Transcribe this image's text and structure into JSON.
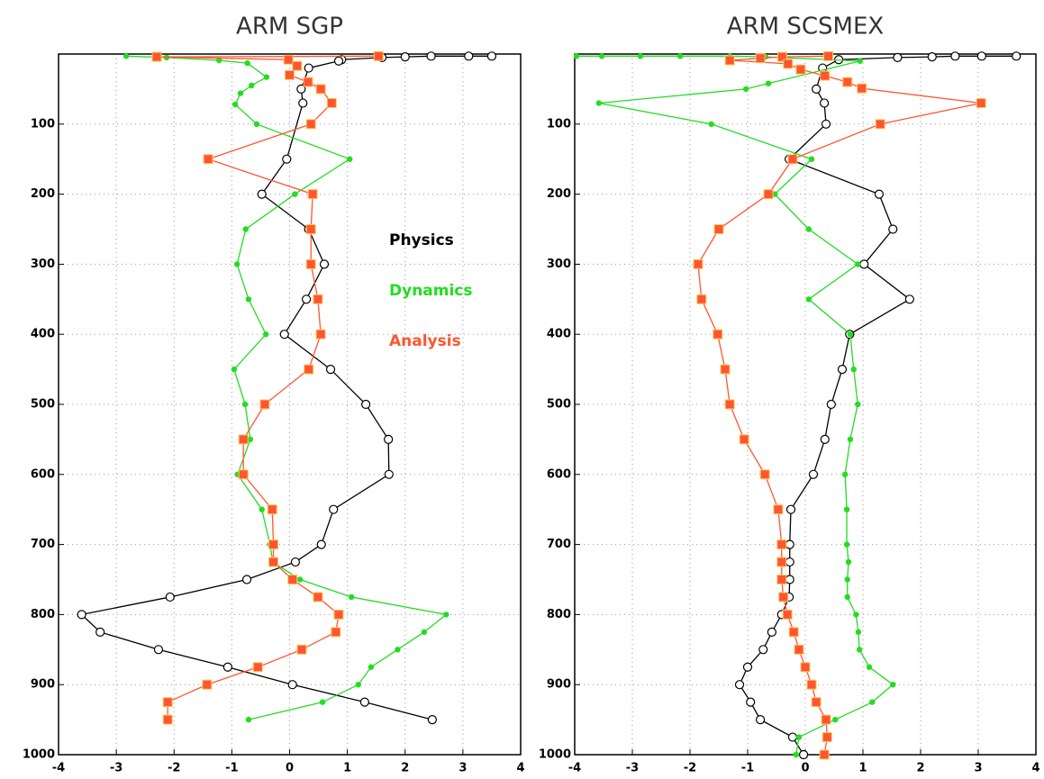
{
  "chart_data": [
    {
      "type": "line",
      "title": "ARM SGP",
      "xlim": [
        -4,
        4
      ],
      "xticks": [
        -4,
        -3,
        -2,
        -1,
        0,
        1,
        2,
        3,
        4
      ],
      "ylim": [
        1000,
        0
      ],
      "yticks": [
        100,
        200,
        300,
        400,
        500,
        600,
        700,
        800,
        900,
        1000
      ],
      "grid": true,
      "legend": true,
      "series": [
        {
          "name": "Physics",
          "color": "#000000",
          "marker": "circle",
          "x": [
            3.5,
            3.1,
            2.45,
            2.0,
            1.6,
            0.9,
            0.85,
            0.33,
            0.2,
            0.23,
            -0.05,
            -0.48,
            0.33,
            0.6,
            0.29,
            -0.09,
            0.71,
            1.32,
            1.71,
            1.72,
            0.76,
            0.55,
            0.1,
            -0.74,
            -2.07,
            -3.6,
            -3.28,
            -2.27,
            -1.07,
            0.05,
            1.3,
            2.47
          ],
          "y": [
            3,
            3,
            3,
            4,
            5,
            8,
            10,
            20,
            50,
            70,
            150,
            200,
            250,
            300,
            350,
            400,
            450,
            500,
            550,
            600,
            650,
            700,
            725,
            750,
            775,
            800,
            825,
            850,
            875,
            900,
            925,
            950
          ]
        },
        {
          "name": "Dynamics",
          "color": "#22dd22",
          "marker": "dot",
          "x": [
            -2.83,
            -2.13,
            -1.22,
            -0.73,
            -0.4,
            -0.66,
            -0.85,
            -0.94,
            -0.57,
            1.04,
            0.09,
            -0.76,
            -0.91,
            -0.71,
            -0.41,
            -0.96,
            -0.77,
            -0.68,
            -0.9,
            -0.48,
            -0.34,
            -0.29,
            0.18,
            1.07,
            2.71,
            2.33,
            1.87,
            1.41,
            1.19,
            0.57,
            -0.71
          ],
          "y": [
            3,
            5,
            9,
            13,
            33,
            45,
            56,
            72,
            100,
            150,
            200,
            250,
            300,
            350,
            400,
            450,
            500,
            550,
            600,
            650,
            700,
            725,
            750,
            775,
            800,
            825,
            850,
            875,
            900,
            925,
            950
          ]
        },
        {
          "name": "Analysis",
          "color": "#ff5533",
          "marker": "square",
          "x": [
            1.54,
            -2.3,
            -0.02,
            0.13,
            0.0,
            0.32,
            0.54,
            0.73,
            0.37,
            -1.41,
            0.4,
            0.37,
            0.37,
            0.49,
            0.54,
            0.33,
            -0.43,
            -0.8,
            -0.8,
            -0.3,
            -0.28,
            -0.28,
            0.05,
            0.49,
            0.85,
            0.8,
            0.21,
            -0.55,
            -1.43,
            -2.11,
            -2.11
          ],
          "y": [
            3,
            4,
            8,
            17,
            30,
            40,
            50,
            70,
            100,
            150,
            200,
            250,
            300,
            350,
            400,
            450,
            500,
            550,
            600,
            650,
            700,
            725,
            750,
            775,
            800,
            825,
            850,
            875,
            900,
            925,
            950
          ]
        }
      ]
    },
    {
      "type": "line",
      "title": "ARM SCSMEX",
      "xlim": [
        -4,
        4
      ],
      "xticks": [
        -4,
        -3,
        -2,
        -1,
        0,
        1,
        2,
        3,
        4
      ],
      "ylim": [
        1000,
        0
      ],
      "yticks": [
        100,
        200,
        300,
        400,
        500,
        600,
        700,
        800,
        900,
        1000
      ],
      "grid": true,
      "legend": false,
      "series": [
        {
          "color": "#000000",
          "marker": "circle",
          "x": [
            3.66,
            3.06,
            2.6,
            2.2,
            1.6,
            0.58,
            0.3,
            0.19,
            0.33,
            0.36,
            -0.28,
            1.28,
            1.52,
            1.02,
            1.81,
            0.77,
            0.64,
            0.45,
            0.34,
            0.14,
            -0.25,
            -0.27,
            -0.27,
            -0.27,
            -0.28,
            -0.41,
            -0.58,
            -0.73,
            -1.0,
            -1.14,
            -0.95,
            -0.78,
            -0.22,
            -0.03
          ],
          "y": [
            3,
            3,
            3,
            4,
            5,
            8,
            20,
            50,
            70,
            100,
            150,
            200,
            250,
            300,
            350,
            400,
            450,
            500,
            550,
            600,
            650,
            700,
            725,
            750,
            775,
            800,
            825,
            850,
            875,
            900,
            925,
            950,
            975,
            1000
          ]
        },
        {
          "color": "#22dd22",
          "marker": "dot",
          "x": [
            -3.97,
            -3.53,
            -2.86,
            -2.17,
            -1.31,
            -0.69,
            0.95,
            -0.64,
            -1.03,
            -3.58,
            -1.63,
            0.11,
            -0.53,
            0.06,
            0.91,
            0.06,
            0.78,
            0.84,
            0.91,
            0.78,
            0.69,
            0.72,
            0.72,
            0.75,
            0.73,
            0.73,
            0.88,
            0.92,
            0.94,
            1.11,
            1.52,
            1.16,
            0.52,
            -0.11,
            -0.16
          ],
          "y": [
            3,
            3,
            3,
            3,
            3,
            4,
            10,
            42,
            50,
            70,
            100,
            150,
            200,
            250,
            300,
            350,
            400,
            450,
            500,
            550,
            600,
            650,
            700,
            725,
            750,
            775,
            800,
            825,
            850,
            875,
            900,
            925,
            950,
            975,
            1000
          ]
        },
        {
          "color": "#ff5533",
          "marker": "square",
          "x": [
            0.4,
            -0.4,
            -0.78,
            -1.31,
            -0.3,
            -0.08,
            0.34,
            0.73,
            0.98,
            3.05,
            1.3,
            -0.22,
            -0.64,
            -1.5,
            -1.86,
            -1.8,
            -1.52,
            -1.39,
            -1.31,
            -1.06,
            -0.7,
            -0.47,
            -0.41,
            -0.41,
            -0.41,
            -0.38,
            -0.31,
            -0.2,
            -0.11,
            0.0,
            0.11,
            0.19,
            0.36,
            0.38,
            0.33
          ],
          "y": [
            3,
            4,
            6,
            9,
            14,
            22,
            31,
            40,
            49,
            70,
            100,
            150,
            200,
            250,
            300,
            350,
            400,
            450,
            500,
            550,
            600,
            650,
            700,
            725,
            750,
            775,
            800,
            825,
            850,
            875,
            900,
            925,
            950,
            975,
            1000
          ]
        }
      ]
    }
  ]
}
